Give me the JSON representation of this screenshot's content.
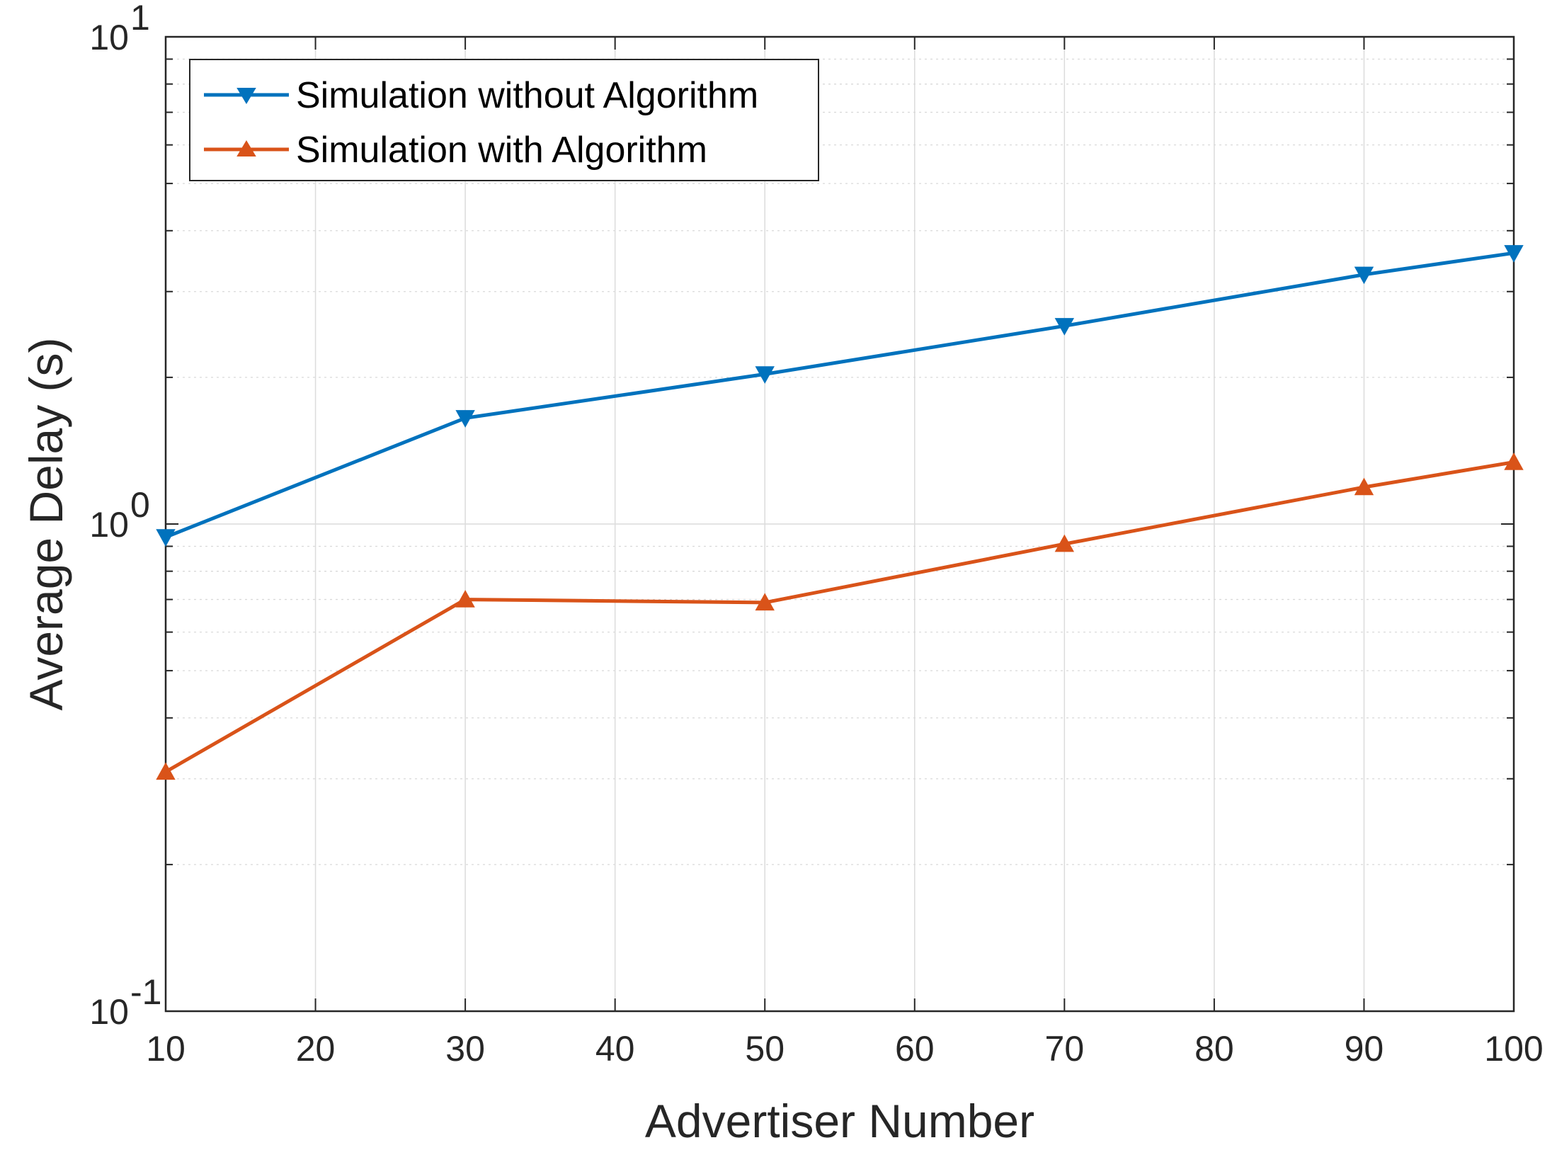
{
  "chart_data": {
    "type": "line",
    "title": "",
    "xlabel": "Advertiser Number",
    "ylabel": "Average Delay (s)",
    "x_scale": "linear",
    "y_scale": "log",
    "xlim": [
      10,
      100
    ],
    "ylim": [
      0.1,
      10
    ],
    "grid": true,
    "legend_position": "top-left",
    "x": [
      10,
      30,
      50,
      70,
      90,
      100
    ],
    "x_ticks": [
      10,
      20,
      30,
      40,
      50,
      60,
      70,
      80,
      90,
      100
    ],
    "x_tick_labels": [
      "10",
      "20",
      "30",
      "40",
      "50",
      "60",
      "70",
      "80",
      "90",
      "100"
    ],
    "y_ticks": [
      {
        "base": "10",
        "exp": "-1",
        "value": 0.1
      },
      {
        "base": "10",
        "exp": "0",
        "value": 1
      },
      {
        "base": "10",
        "exp": "1",
        "value": 10
      }
    ],
    "series": [
      {
        "name": "Simulation without Algorithm",
        "color": "#0072BD",
        "marker": "triangle-down",
        "values": [
          0.94,
          1.65,
          2.03,
          2.55,
          3.25,
          3.6
        ]
      },
      {
        "name": "Simulation with Algorithm",
        "color": "#D95319",
        "marker": "triangle-up",
        "values": [
          0.31,
          0.7,
          0.69,
          0.91,
          1.19,
          1.34
        ]
      }
    ]
  }
}
